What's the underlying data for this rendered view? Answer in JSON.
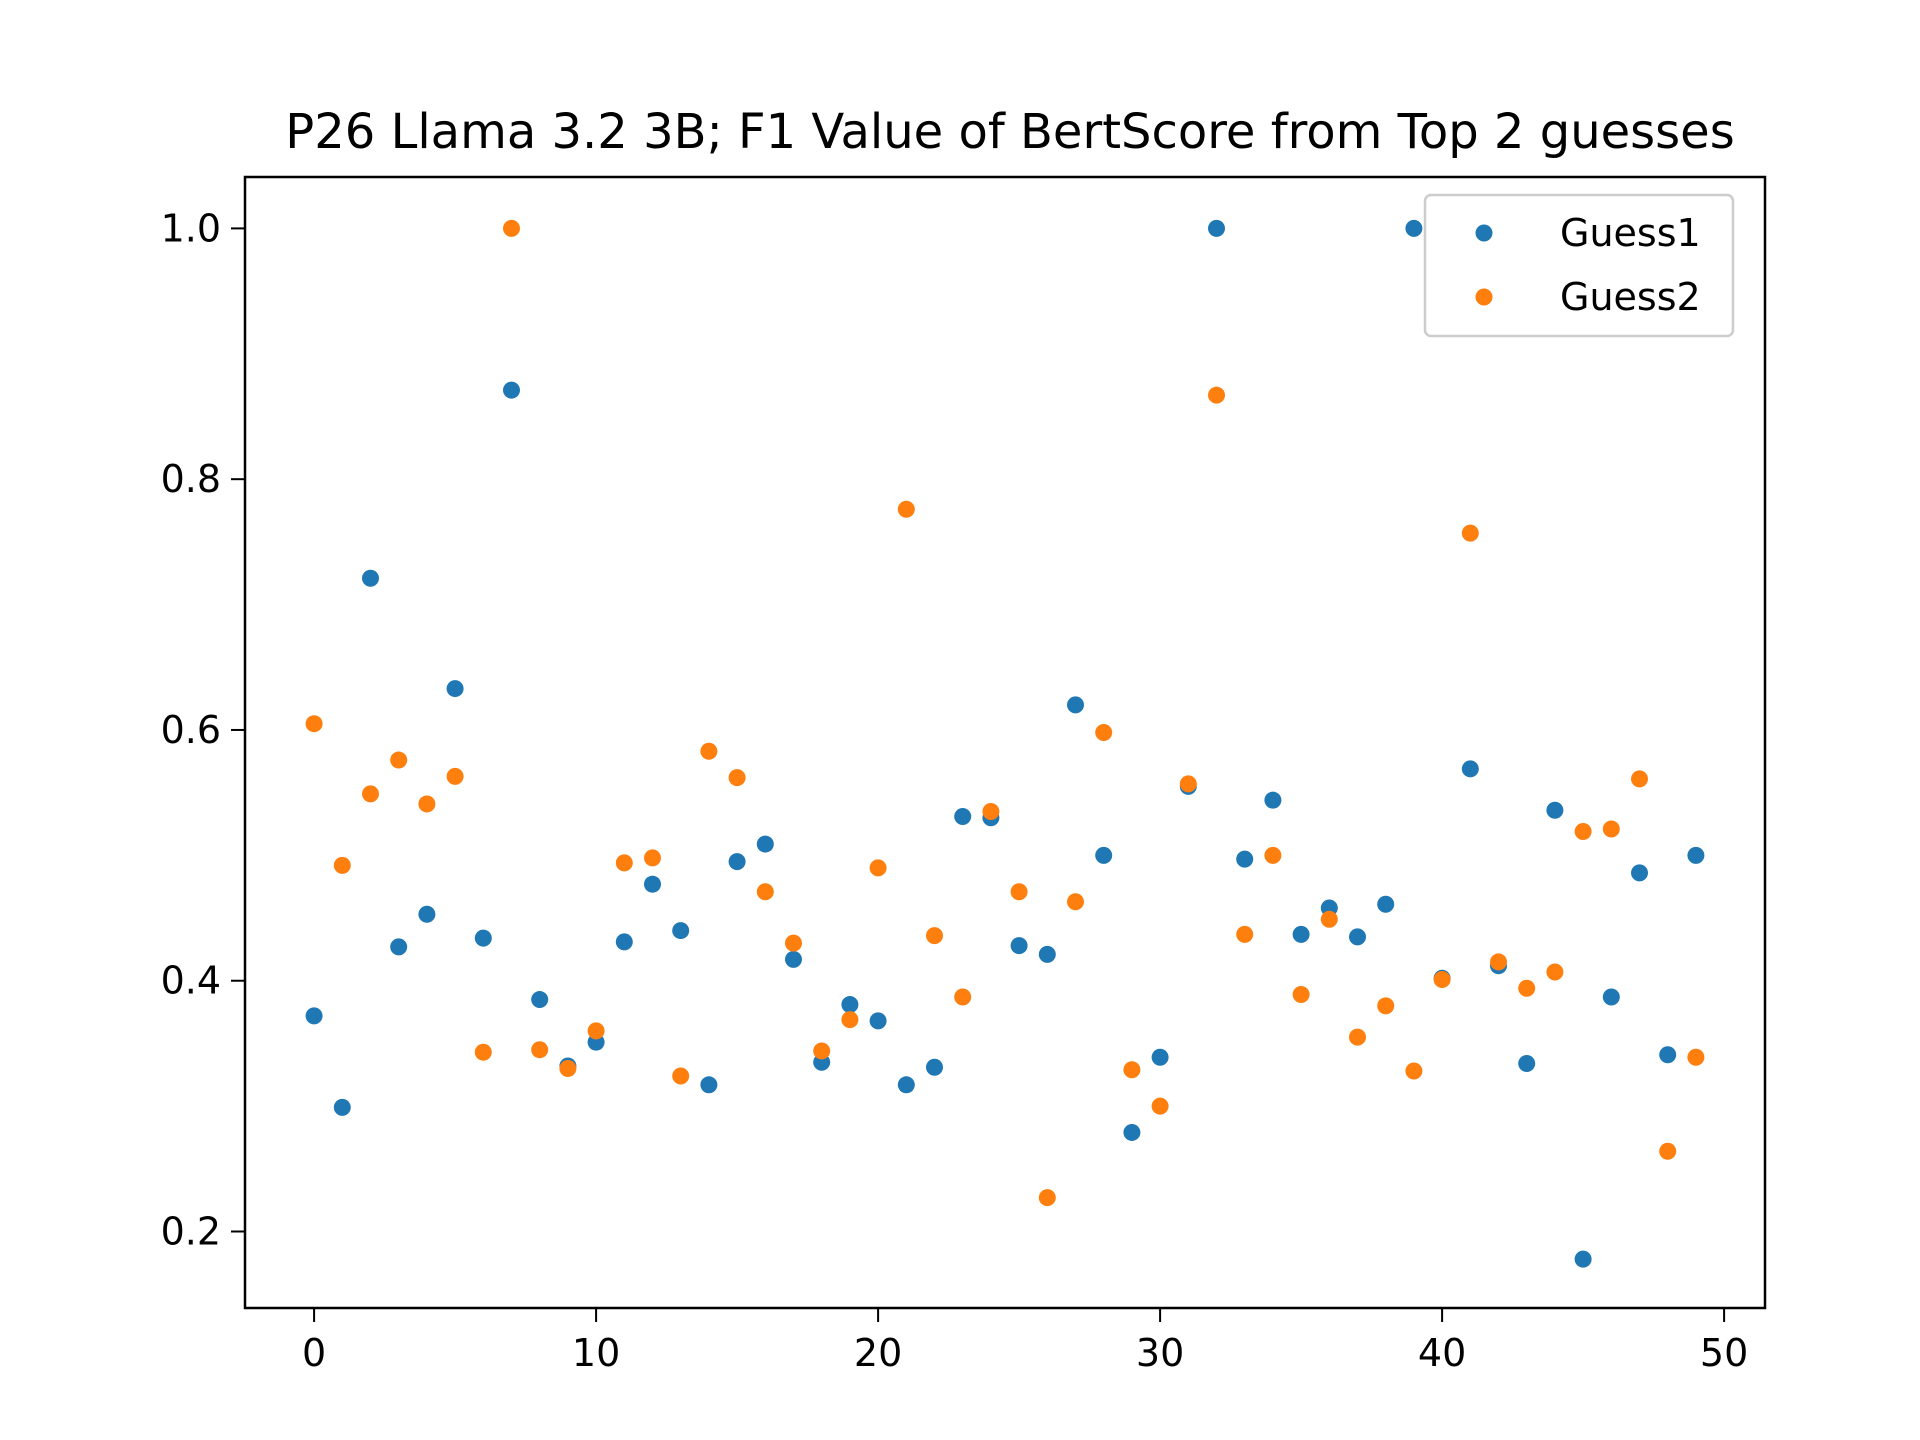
{
  "chart_data": {
    "type": "scatter",
    "title": "P26 Llama 3.2 3B; F1 Value of BertScore from Top 2 guesses",
    "xlabel": "",
    "ylabel": "",
    "xlim": [
      -2.45,
      51.45
    ],
    "ylim": [
      0.139,
      1.041
    ],
    "xticks": [
      0,
      10,
      20,
      30,
      40,
      50
    ],
    "xtick_labels": [
      "0",
      "10",
      "20",
      "30",
      "40",
      "50"
    ],
    "yticks": [
      0.2,
      0.4,
      0.6,
      0.8,
      1.0
    ],
    "ytick_labels": [
      "0.2",
      "0.4",
      "0.6",
      "0.8",
      "1.0"
    ],
    "grid": false,
    "legend_position": "top-right",
    "series": [
      {
        "name": "Guess1",
        "color": "#1f77b4",
        "x": [
          0,
          1,
          2,
          3,
          4,
          5,
          6,
          7,
          8,
          9,
          10,
          11,
          12,
          13,
          14,
          15,
          16,
          17,
          18,
          19,
          20,
          21,
          22,
          23,
          24,
          25,
          26,
          27,
          28,
          29,
          30,
          31,
          32,
          33,
          34,
          35,
          36,
          37,
          38,
          39,
          40,
          41,
          42,
          43,
          44,
          45,
          46,
          47,
          48,
          49
        ],
        "y": [
          0.372,
          0.299,
          0.721,
          0.427,
          0.453,
          0.633,
          0.434,
          0.871,
          0.385,
          0.332,
          0.351,
          0.431,
          0.477,
          0.44,
          0.317,
          0.495,
          0.509,
          0.417,
          0.335,
          0.381,
          0.368,
          0.317,
          0.331,
          0.531,
          0.53,
          0.428,
          0.421,
          0.62,
          0.5,
          0.279,
          0.339,
          0.555,
          1.0,
          0.497,
          0.544,
          0.437,
          0.458,
          0.435,
          0.461,
          1.0,
          0.402,
          0.569,
          0.412,
          0.334,
          0.536,
          0.178,
          0.387,
          0.486,
          0.341,
          0.5
        ]
      },
      {
        "name": "Guess2",
        "color": "#ff7f0e",
        "x": [
          0,
          1,
          2,
          3,
          4,
          5,
          6,
          7,
          8,
          9,
          10,
          11,
          12,
          13,
          14,
          15,
          16,
          17,
          18,
          19,
          20,
          21,
          22,
          23,
          24,
          25,
          26,
          27,
          28,
          29,
          30,
          31,
          32,
          33,
          34,
          35,
          36,
          37,
          38,
          39,
          40,
          41,
          42,
          43,
          44,
          45,
          46,
          47,
          48,
          49
        ],
        "y": [
          0.605,
          0.492,
          0.549,
          0.576,
          0.541,
          0.563,
          0.343,
          1.0,
          0.345,
          0.33,
          0.36,
          0.494,
          0.498,
          0.324,
          0.583,
          0.562,
          0.471,
          0.43,
          0.344,
          0.369,
          0.49,
          0.776,
          0.436,
          0.387,
          0.535,
          0.471,
          0.227,
          0.463,
          0.598,
          0.329,
          0.3,
          0.557,
          0.867,
          0.437,
          0.5,
          0.389,
          0.449,
          0.355,
          0.38,
          0.328,
          0.401,
          0.757,
          0.415,
          0.394,
          0.407,
          0.519,
          0.521,
          0.561,
          0.264,
          0.339
        ]
      }
    ]
  }
}
